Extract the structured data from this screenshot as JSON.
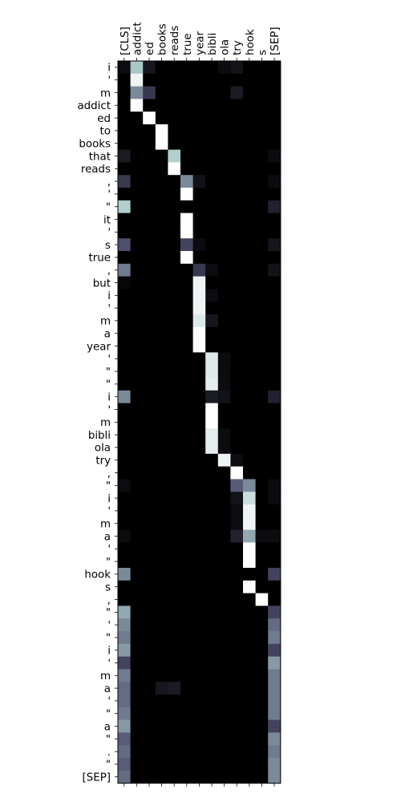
{
  "chart_data": {
    "type": "heatmap",
    "title": "",
    "xlabel": "",
    "ylabel": "",
    "colormap": "bone",
    "value_range": [
      0,
      1
    ],
    "x_labels": [
      "[CLS]",
      "addict",
      "ed",
      "books",
      "reads",
      "true",
      "year",
      "bibli",
      "ola",
      "try",
      "hook",
      "s",
      "[SEP]"
    ],
    "y_labels": [
      "i",
      "'",
      "m",
      "addict",
      "ed",
      "to",
      "books",
      "that",
      "reads",
      ",",
      "'",
      "\"",
      "it",
      "'",
      "s",
      "true",
      ",",
      "but",
      "i",
      "'",
      "m",
      "a",
      "year",
      "'",
      "\"",
      "\"",
      "i",
      "'",
      "m",
      "bibli",
      "ola",
      "try",
      ",",
      "\"",
      "i",
      "'",
      "m",
      "a",
      "'",
      "\"",
      "hook",
      "s",
      ",",
      "\"",
      "'",
      "\"",
      "i",
      "'",
      "m",
      "a",
      "'",
      "\"",
      "a",
      "\"",
      ".",
      "\"",
      "[SEP]"
    ],
    "highlights": [
      {
        "r": 0,
        "c": 0,
        "v": 0.05
      },
      {
        "r": 0,
        "c": 1,
        "v": 0.75
      },
      {
        "r": 0,
        "c": 2,
        "v": 0.1
      },
      {
        "r": 0,
        "c": 8,
        "v": 0.05
      },
      {
        "r": 0,
        "c": 9,
        "v": 0.08
      },
      {
        "r": 1,
        "c": 1,
        "v": 0.95
      },
      {
        "r": 2,
        "c": 1,
        "v": 0.55
      },
      {
        "r": 2,
        "c": 2,
        "v": 0.25
      },
      {
        "r": 2,
        "c": 9,
        "v": 0.12
      },
      {
        "r": 3,
        "c": 1,
        "v": 1.0
      },
      {
        "r": 4,
        "c": 2,
        "v": 1.0
      },
      {
        "r": 5,
        "c": 3,
        "v": 1.0
      },
      {
        "r": 6,
        "c": 3,
        "v": 1.0
      },
      {
        "r": 7,
        "c": 0,
        "v": 0.12
      },
      {
        "r": 7,
        "c": 4,
        "v": 0.78
      },
      {
        "r": 7,
        "c": 12,
        "v": 0.05
      },
      {
        "r": 8,
        "c": 4,
        "v": 1.0
      },
      {
        "r": 9,
        "c": 0,
        "v": 0.25
      },
      {
        "r": 9,
        "c": 5,
        "v": 0.55
      },
      {
        "r": 9,
        "c": 6,
        "v": 0.08
      },
      {
        "r": 9,
        "c": 12,
        "v": 0.05
      },
      {
        "r": 10,
        "c": 5,
        "v": 1.0
      },
      {
        "r": 11,
        "c": 0,
        "v": 0.78
      },
      {
        "r": 11,
        "c": 12,
        "v": 0.15
      },
      {
        "r": 12,
        "c": 5,
        "v": 1.0
      },
      {
        "r": 13,
        "c": 5,
        "v": 1.0
      },
      {
        "r": 14,
        "c": 0,
        "v": 0.35
      },
      {
        "r": 14,
        "c": 5,
        "v": 0.3
      },
      {
        "r": 14,
        "c": 6,
        "v": 0.05
      },
      {
        "r": 14,
        "c": 12,
        "v": 0.1
      },
      {
        "r": 15,
        "c": 5,
        "v": 1.0
      },
      {
        "r": 16,
        "c": 0,
        "v": 0.5
      },
      {
        "r": 16,
        "c": 6,
        "v": 0.25
      },
      {
        "r": 16,
        "c": 7,
        "v": 0.05
      },
      {
        "r": 16,
        "c": 12,
        "v": 0.08
      },
      {
        "r": 17,
        "c": 0,
        "v": 0.03
      },
      {
        "r": 17,
        "c": 6,
        "v": 0.95
      },
      {
        "r": 18,
        "c": 6,
        "v": 0.95
      },
      {
        "r": 18,
        "c": 7,
        "v": 0.05
      },
      {
        "r": 19,
        "c": 6,
        "v": 0.95
      },
      {
        "r": 20,
        "c": 6,
        "v": 0.9
      },
      {
        "r": 20,
        "c": 7,
        "v": 0.1
      },
      {
        "r": 21,
        "c": 6,
        "v": 1.0
      },
      {
        "r": 22,
        "c": 6,
        "v": 1.0
      },
      {
        "r": 23,
        "c": 7,
        "v": 0.9
      },
      {
        "r": 23,
        "c": 8,
        "v": 0.05
      },
      {
        "r": 24,
        "c": 7,
        "v": 0.9
      },
      {
        "r": 24,
        "c": 8,
        "v": 0.05
      },
      {
        "r": 25,
        "c": 7,
        "v": 0.92
      },
      {
        "r": 25,
        "c": 8,
        "v": 0.05
      },
      {
        "r": 26,
        "c": 0,
        "v": 0.55
      },
      {
        "r": 26,
        "c": 7,
        "v": 0.12
      },
      {
        "r": 26,
        "c": 8,
        "v": 0.08
      },
      {
        "r": 26,
        "c": 12,
        "v": 0.15
      },
      {
        "r": 27,
        "c": 7,
        "v": 1.0
      },
      {
        "r": 28,
        "c": 7,
        "v": 1.0
      },
      {
        "r": 29,
        "c": 7,
        "v": 0.92
      },
      {
        "r": 29,
        "c": 8,
        "v": 0.05
      },
      {
        "r": 30,
        "c": 7,
        "v": 0.92
      },
      {
        "r": 30,
        "c": 8,
        "v": 0.05
      },
      {
        "r": 31,
        "c": 8,
        "v": 0.95
      },
      {
        "r": 31,
        "c": 9,
        "v": 0.05
      },
      {
        "r": 32,
        "c": 9,
        "v": 1.0
      },
      {
        "r": 33,
        "c": 0,
        "v": 0.05
      },
      {
        "r": 33,
        "c": 9,
        "v": 0.4
      },
      {
        "r": 33,
        "c": 10,
        "v": 0.55
      },
      {
        "r": 33,
        "c": 12,
        "v": 0.05
      },
      {
        "r": 34,
        "c": 9,
        "v": 0.08
      },
      {
        "r": 34,
        "c": 10,
        "v": 0.85
      },
      {
        "r": 34,
        "c": 12,
        "v": 0.05
      },
      {
        "r": 35,
        "c": 9,
        "v": 0.05
      },
      {
        "r": 35,
        "c": 10,
        "v": 0.95
      },
      {
        "r": 36,
        "c": 9,
        "v": 0.05
      },
      {
        "r": 36,
        "c": 10,
        "v": 0.95
      },
      {
        "r": 37,
        "c": 0,
        "v": 0.05
      },
      {
        "r": 37,
        "c": 9,
        "v": 0.15
      },
      {
        "r": 37,
        "c": 10,
        "v": 0.65
      },
      {
        "r": 37,
        "c": 11,
        "v": 0.05
      },
      {
        "r": 37,
        "c": 12,
        "v": 0.05
      },
      {
        "r": 38,
        "c": 10,
        "v": 1.0
      },
      {
        "r": 39,
        "c": 10,
        "v": 1.0
      },
      {
        "r": 40,
        "c": 0,
        "v": 0.55
      },
      {
        "r": 40,
        "c": 12,
        "v": 0.3
      },
      {
        "r": 41,
        "c": 10,
        "v": 1.0
      },
      {
        "r": 42,
        "c": 11,
        "v": 1.0
      },
      {
        "r": 43,
        "c": 0,
        "v": 0.65
      },
      {
        "r": 43,
        "c": 12,
        "v": 0.3
      },
      {
        "r": 44,
        "c": 0,
        "v": 0.55
      },
      {
        "r": 44,
        "c": 12,
        "v": 0.45
      },
      {
        "r": 45,
        "c": 0,
        "v": 0.5
      },
      {
        "r": 45,
        "c": 12,
        "v": 0.5
      },
      {
        "r": 46,
        "c": 0,
        "v": 0.6
      },
      {
        "r": 46,
        "c": 12,
        "v": 0.3
      },
      {
        "r": 47,
        "c": 0,
        "v": 0.3
      },
      {
        "r": 47,
        "c": 12,
        "v": 0.6
      },
      {
        "r": 48,
        "c": 0,
        "v": 0.5
      },
      {
        "r": 48,
        "c": 12,
        "v": 0.5
      },
      {
        "r": 49,
        "c": 0,
        "v": 0.45
      },
      {
        "r": 49,
        "c": 3,
        "v": 0.1
      },
      {
        "r": 49,
        "c": 4,
        "v": 0.12
      },
      {
        "r": 49,
        "c": 12,
        "v": 0.5
      },
      {
        "r": 50,
        "c": 0,
        "v": 0.45
      },
      {
        "r": 50,
        "c": 12,
        "v": 0.5
      },
      {
        "r": 51,
        "c": 0,
        "v": 0.5
      },
      {
        "r": 51,
        "c": 12,
        "v": 0.5
      },
      {
        "r": 52,
        "c": 0,
        "v": 0.6
      },
      {
        "r": 52,
        "c": 12,
        "v": 0.3
      },
      {
        "r": 53,
        "c": 0,
        "v": 0.4
      },
      {
        "r": 53,
        "c": 12,
        "v": 0.55
      },
      {
        "r": 54,
        "c": 0,
        "v": 0.45
      },
      {
        "r": 54,
        "c": 12,
        "v": 0.5
      },
      {
        "r": 55,
        "c": 0,
        "v": 0.4
      },
      {
        "r": 55,
        "c": 12,
        "v": 0.55
      },
      {
        "r": 56,
        "c": 0,
        "v": 0.45
      },
      {
        "r": 56,
        "c": 12,
        "v": 0.55
      }
    ]
  }
}
